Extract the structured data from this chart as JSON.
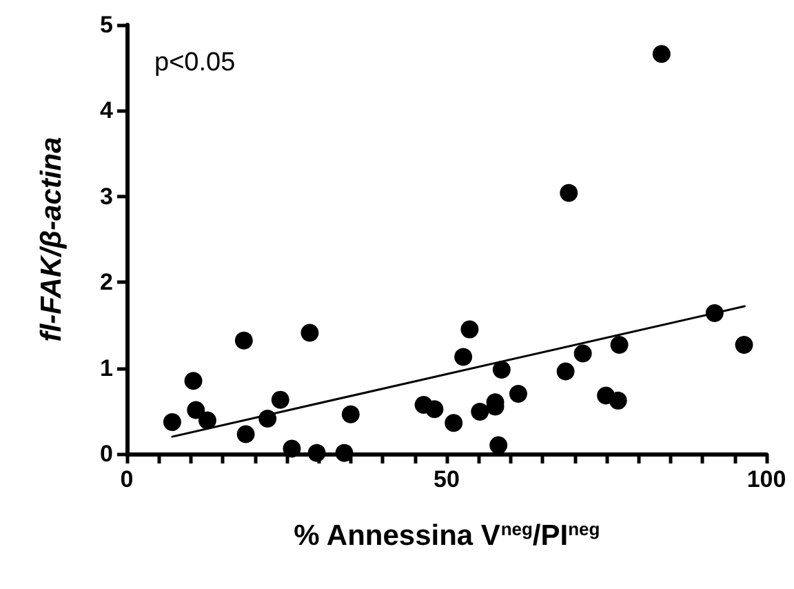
{
  "chart_data": {
    "type": "scatter",
    "xlabel": "% Annessina V$^{neg}$/PI$^{neg}$",
    "ylabel": "fl-FAK/β-actina",
    "annotations": [
      "p<0.05"
    ],
    "xlim": [
      0,
      100
    ],
    "ylim": [
      0,
      5
    ],
    "xticks": [
      0,
      {
        "value": 5,
        "label": null
      },
      {
        "value": 10,
        "label": null
      },
      {
        "value": 15,
        "label": null
      },
      {
        "value": 20,
        "label": null
      },
      {
        "value": 25,
        "label": null
      },
      {
        "value": 30,
        "label": null
      },
      {
        "value": 35,
        "label": null
      },
      {
        "value": 40,
        "label": null
      },
      {
        "value": 45,
        "label": null
      },
      50,
      {
        "value": 55,
        "label": null
      },
      {
        "value": 60,
        "label": null
      },
      {
        "value": 65,
        "label": null
      },
      {
        "value": 70,
        "label": null
      },
      {
        "value": 75,
        "label": null
      },
      {
        "value": 80,
        "label": null
      },
      {
        "value": 85,
        "label": null
      },
      {
        "value": 90,
        "label": null
      },
      {
        "value": 95,
        "label": null
      },
      100
    ],
    "yticks": [
      0,
      1,
      2,
      3,
      4,
      5
    ],
    "grid": false,
    "marker": "circle",
    "series": [
      {
        "color": "#000000",
        "x": [
          7.1,
          10.4,
          10.8,
          12.6,
          18.3,
          18.6,
          22.0,
          24.0,
          25.8,
          28.6,
          29.7,
          34.0,
          35.0,
          46.4,
          48.1,
          51.1,
          52.6,
          53.6,
          55.2,
          57.6,
          57.6,
          58.1,
          58.6,
          61.2,
          68.6,
          69.1,
          71.3,
          74.9,
          76.8,
          77.0,
          83.6,
          91.9,
          96.5
        ],
        "values": [
          0.37,
          0.85,
          0.51,
          0.39,
          1.32,
          0.23,
          0.41,
          0.63,
          0.06,
          1.41,
          0.01,
          0.01,
          0.46,
          0.57,
          0.52,
          0.36,
          1.13,
          1.45,
          0.49,
          0.6,
          0.55,
          0.1,
          0.98,
          0.7,
          0.96,
          3.04,
          1.17,
          0.68,
          0.62,
          1.27,
          4.66,
          1.64,
          1.27
        ]
      },
      {
        "type": "line",
        "color": "#000000",
        "x": [
          7.1,
          96.6
        ],
        "values": [
          0.2,
          1.72
        ],
        "marker": "none",
        "line_style": "solid"
      }
    ]
  }
}
